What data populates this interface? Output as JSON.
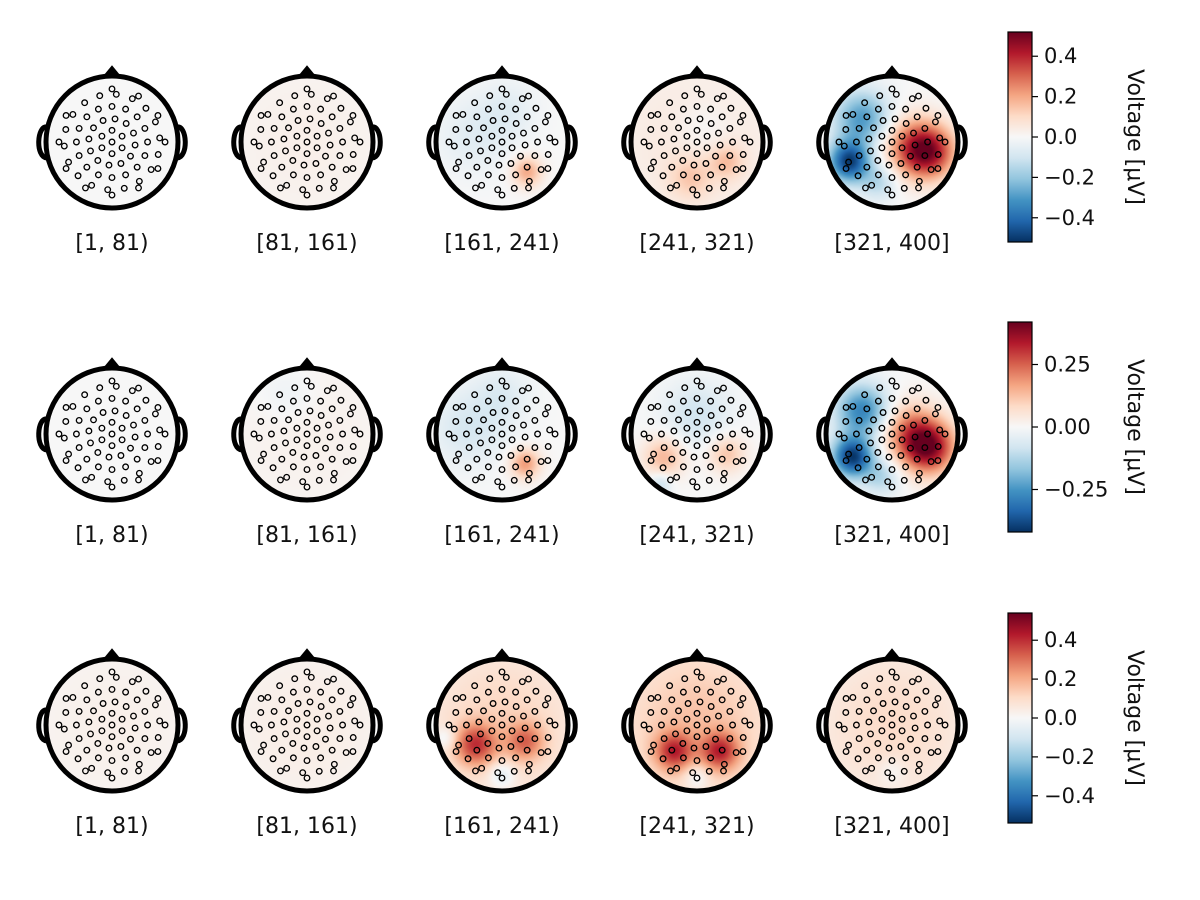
{
  "chart_data": {
    "type": "heatmap",
    "subtype": "eeg-topomap-grid",
    "colormap": "RdBu_r",
    "colorbar_label": "Voltage [μV]",
    "rows": [
      {
        "vlim": [
          -0.52,
          0.52
        ],
        "colorbar_ticks": [
          0.4,
          0.2,
          0.0,
          -0.2,
          -0.4
        ],
        "colorbar_tick_labels": [
          "0.4",
          "0.2",
          "0.0",
          "−0.2",
          "−0.4"
        ],
        "maps": [
          {
            "label": "[1, 81)",
            "blobs": []
          },
          {
            "label": "[81, 161)",
            "blobs": [
              {
                "u": 0.0,
                "v": 0.0,
                "s": 0.9,
                "a": 0.03
              }
            ]
          },
          {
            "label": "[161, 241)",
            "blobs": [
              {
                "u": 0.38,
                "v": 0.45,
                "s": 0.16,
                "a": 0.2
              },
              {
                "u": -0.4,
                "v": -0.1,
                "s": 0.4,
                "a": -0.06
              },
              {
                "u": 0.1,
                "v": -0.5,
                "s": 0.3,
                "a": -0.05
              }
            ]
          },
          {
            "label": "[241, 321)",
            "blobs": [
              {
                "u": 0.0,
                "v": 0.0,
                "s": 0.9,
                "a": 0.06
              },
              {
                "u": 0.45,
                "v": 0.3,
                "s": 0.18,
                "a": 0.12
              },
              {
                "u": -0.1,
                "v": 0.55,
                "s": 0.22,
                "a": 0.1
              },
              {
                "u": 0.1,
                "v": -0.2,
                "s": 0.3,
                "a": -0.05
              }
            ]
          },
          {
            "label": "[321, 400]",
            "blobs": [
              {
                "u": 0.55,
                "v": 0.15,
                "s": 0.28,
                "a": 0.42
              },
              {
                "u": 0.25,
                "v": 0.05,
                "s": 0.32,
                "a": 0.2
              },
              {
                "u": -0.65,
                "v": 0.3,
                "s": 0.22,
                "a": -0.48
              },
              {
                "u": -0.45,
                "v": -0.35,
                "s": 0.3,
                "a": -0.3
              },
              {
                "u": -0.2,
                "v": 0.6,
                "s": 0.2,
                "a": -0.15
              }
            ]
          }
        ]
      },
      {
        "vlim": [
          -0.42,
          0.42
        ],
        "colorbar_ticks": [
          0.25,
          0.0,
          -0.25
        ],
        "colorbar_tick_labels": [
          "0.25",
          "0.00",
          "−0.25"
        ],
        "maps": [
          {
            "label": "[1, 81)",
            "blobs": []
          },
          {
            "label": "[81, 161)",
            "blobs": [
              {
                "u": 0.0,
                "v": 0.0,
                "s": 0.9,
                "a": 0.02
              },
              {
                "u": -0.3,
                "v": -0.6,
                "s": 0.3,
                "a": -0.03
              }
            ]
          },
          {
            "label": "[161, 241)",
            "blobs": [
              {
                "u": 0.35,
                "v": 0.45,
                "s": 0.16,
                "a": 0.18
              },
              {
                "u": -0.5,
                "v": -0.1,
                "s": 0.4,
                "a": -0.07
              },
              {
                "u": 0.0,
                "v": -0.6,
                "s": 0.3,
                "a": -0.05
              }
            ]
          },
          {
            "label": "[241, 321)",
            "blobs": [
              {
                "u": -0.5,
                "v": 0.35,
                "s": 0.22,
                "a": 0.14
              },
              {
                "u": 0.45,
                "v": 0.3,
                "s": 0.2,
                "a": 0.12
              },
              {
                "u": 0.0,
                "v": -0.3,
                "s": 0.35,
                "a": -0.08
              },
              {
                "u": -0.55,
                "v": 0.75,
                "s": 0.12,
                "a": -0.1
              }
            ]
          },
          {
            "label": "[321, 400]",
            "blobs": [
              {
                "u": 0.55,
                "v": 0.2,
                "s": 0.28,
                "a": 0.38
              },
              {
                "u": 0.25,
                "v": -0.05,
                "s": 0.3,
                "a": 0.18
              },
              {
                "u": -0.6,
                "v": 0.35,
                "s": 0.22,
                "a": -0.4
              },
              {
                "u": -0.45,
                "v": -0.35,
                "s": 0.28,
                "a": -0.28
              },
              {
                "u": -0.15,
                "v": 0.65,
                "s": 0.2,
                "a": -0.12
              }
            ]
          }
        ]
      },
      {
        "vlim": [
          -0.54,
          0.54
        ],
        "colorbar_ticks": [
          0.4,
          0.2,
          0.0,
          -0.2,
          -0.4
        ],
        "colorbar_tick_labels": [
          "0.4",
          "0.2",
          "0.0",
          "−0.2",
          "−0.4"
        ],
        "maps": [
          {
            "label": "[1, 81)",
            "blobs": [
              {
                "u": 0.0,
                "v": 0.0,
                "s": 0.9,
                "a": 0.03
              }
            ]
          },
          {
            "label": "[81, 161)",
            "blobs": [
              {
                "u": 0.0,
                "v": 0.0,
                "s": 0.9,
                "a": 0.04
              }
            ]
          },
          {
            "label": "[161, 241)",
            "blobs": [
              {
                "u": 0.0,
                "v": 0.0,
                "s": 0.9,
                "a": 0.12
              },
              {
                "u": -0.4,
                "v": 0.3,
                "s": 0.22,
                "a": 0.3
              },
              {
                "u": 0.35,
                "v": 0.25,
                "s": 0.2,
                "a": 0.22
              },
              {
                "u": 0.0,
                "v": 0.75,
                "s": 0.14,
                "a": -0.14
              },
              {
                "u": -0.85,
                "v": 0.2,
                "s": 0.12,
                "a": -0.1
              }
            ]
          },
          {
            "label": "[241, 321)",
            "blobs": [
              {
                "u": 0.0,
                "v": 0.0,
                "s": 0.9,
                "a": 0.16
              },
              {
                "u": -0.35,
                "v": 0.4,
                "s": 0.2,
                "a": 0.3
              },
              {
                "u": 0.35,
                "v": 0.4,
                "s": 0.2,
                "a": 0.3
              },
              {
                "u": 0.0,
                "v": 0.78,
                "s": 0.14,
                "a": -0.12
              }
            ]
          },
          {
            "label": "[321, 400]",
            "blobs": [
              {
                "u": 0.0,
                "v": 0.0,
                "s": 0.9,
                "a": 0.1
              },
              {
                "u": 0.0,
                "v": 0.7,
                "s": 0.15,
                "a": -0.06
              }
            ]
          }
        ]
      }
    ],
    "sensor_layout": "64-channel 10-10 montage"
  }
}
